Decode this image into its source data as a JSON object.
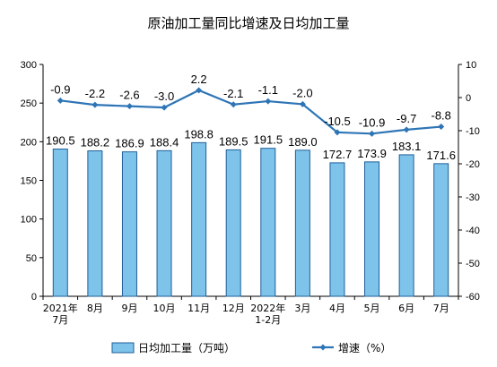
{
  "chart_data": {
    "type": "bar",
    "title": "原油加工量同比增速及日均加工量",
    "categories": [
      "2021年\n7月",
      "8月",
      "9月",
      "10月",
      "11月",
      "12月",
      "2022年\n1-2月",
      "3月",
      "4月",
      "5月",
      "6月",
      "7月"
    ],
    "series": [
      {
        "name": "日均加工量（万吨）",
        "type": "bar",
        "axis": "left",
        "color": "#7ec3ea",
        "values": [
          190.5,
          188.2,
          186.9,
          188.4,
          198.8,
          189.5,
          191.5,
          189.0,
          172.7,
          173.9,
          183.1,
          171.6
        ],
        "labels": [
          "190.5",
          "188.2",
          "186.9",
          "188.4",
          "198.8",
          "189.5",
          "191.5",
          "189.0",
          "172.7",
          "173.9",
          "183.1",
          "171.6"
        ]
      },
      {
        "name": "增速（%）",
        "type": "line",
        "axis": "right",
        "color": "#2e75b6",
        "values": [
          -0.9,
          -2.2,
          -2.6,
          -3.0,
          2.2,
          -2.1,
          -1.1,
          -2.0,
          -10.5,
          -10.9,
          -9.7,
          -8.8
        ],
        "labels": [
          "-0.9",
          "-2.2",
          "-2.6",
          "-3.0",
          "2.2",
          "-2.1",
          "-1.1",
          "-2.0",
          "-10.5",
          "-10.9",
          "-9.7",
          "-8.8"
        ]
      }
    ],
    "ylim_left": [
      0,
      300
    ],
    "yticks_left": [
      0,
      50,
      100,
      150,
      200,
      250,
      300
    ],
    "ylim_right": [
      -60,
      10
    ],
    "yticks_right": [
      -60,
      -50,
      -40,
      -30,
      -20,
      -10,
      0,
      10
    ],
    "legend": "bottom",
    "grid": false
  }
}
